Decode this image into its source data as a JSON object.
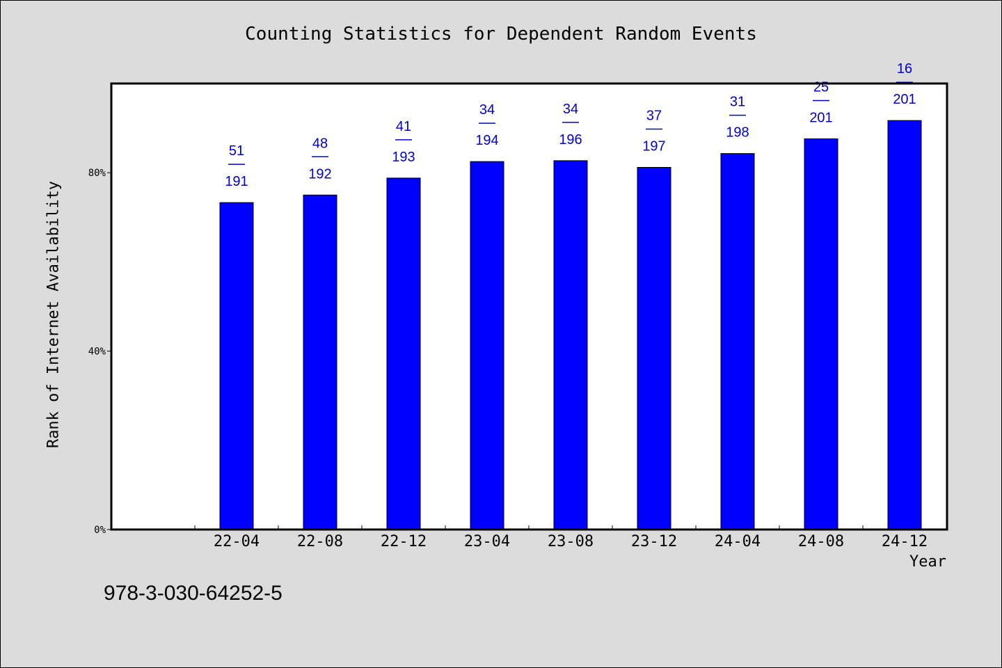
{
  "chart_data": {
    "type": "bar",
    "title": "Counting Statistics for Dependent Random Events",
    "xlabel": "Year",
    "ylabel": "Rank of Internet Availability",
    "categories": [
      "22-04",
      "22-08",
      "22-12",
      "23-04",
      "23-08",
      "23-12",
      "24-04",
      "24-08",
      "24-12"
    ],
    "values": [
      73.3,
      75.0,
      78.8,
      82.5,
      82.7,
      81.2,
      84.3,
      87.6,
      91.7
    ],
    "data_labels": [
      {
        "top": "51",
        "bottom": "191"
      },
      {
        "top": "48",
        "bottom": "192"
      },
      {
        "top": "41",
        "bottom": "193"
      },
      {
        "top": "34",
        "bottom": "194"
      },
      {
        "top": "34",
        "bottom": "196"
      },
      {
        "top": "37",
        "bottom": "197"
      },
      {
        "top": "31",
        "bottom": "198"
      },
      {
        "top": "25",
        "bottom": "201"
      },
      {
        "top": "16",
        "bottom": "201"
      }
    ],
    "yticks": [
      0,
      40,
      80
    ],
    "ytick_labels": [
      "0%",
      "40%",
      "80%"
    ],
    "ylim": [
      0,
      100
    ],
    "bar_color": "#0000ff",
    "label_color": "#0000cc",
    "grid": false
  },
  "footer_text": "978-3-030-64252-5"
}
